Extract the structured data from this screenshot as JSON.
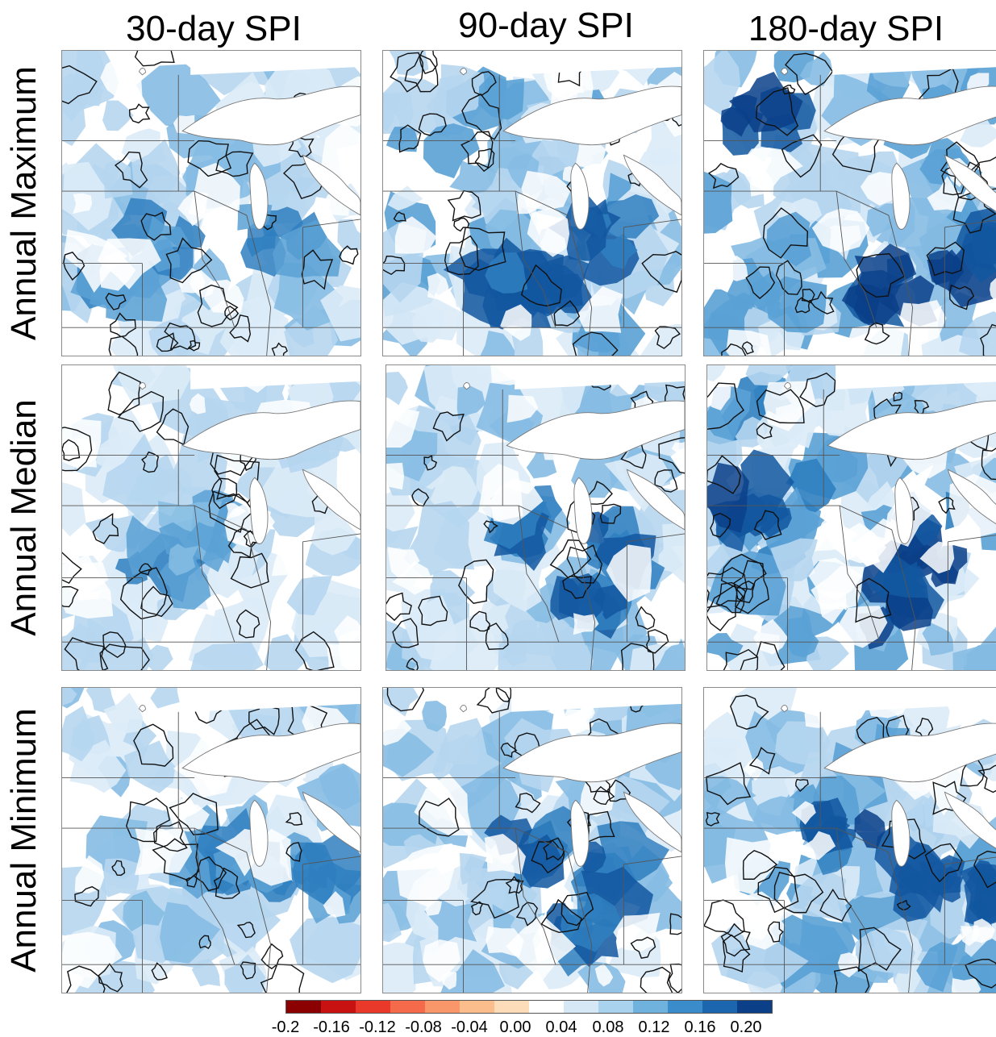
{
  "columns": [
    {
      "title": "30-day SPI"
    },
    {
      "title": "90-day SPI"
    },
    {
      "title": "180-day SPI"
    }
  ],
  "rows": [
    {
      "title": "Annual Maximum"
    },
    {
      "title": "Annual Median"
    },
    {
      "title": "Annual Minimum"
    }
  ],
  "panels": [
    {
      "row": 0,
      "col": 0,
      "intensity": 0.35,
      "blue_coverage": 0.55,
      "hotspots": [
        "southwest",
        "michigan-lower",
        "iowa"
      ]
    },
    {
      "row": 0,
      "col": 1,
      "intensity": 0.6,
      "blue_coverage": 0.7,
      "hotspots": [
        "illinois",
        "missouri-iowa",
        "michigan-lower"
      ]
    },
    {
      "row": 0,
      "col": 2,
      "intensity": 0.85,
      "blue_coverage": 0.8,
      "hotspots": [
        "minnesota-north",
        "illinois-indiana",
        "ohio"
      ]
    },
    {
      "row": 1,
      "col": 0,
      "intensity": 0.15,
      "blue_coverage": 0.55,
      "hotspots": [
        "wisconsin",
        "iowa"
      ]
    },
    {
      "row": 1,
      "col": 1,
      "intensity": 0.5,
      "blue_coverage": 0.7,
      "hotspots": [
        "wisconsin",
        "michigan-lower",
        "indiana"
      ]
    },
    {
      "row": 1,
      "col": 2,
      "intensity": 0.8,
      "blue_coverage": 0.8,
      "hotspots": [
        "minnesota",
        "michigan-lower",
        "illinois-indiana"
      ]
    },
    {
      "row": 2,
      "col": 0,
      "intensity": 0.35,
      "blue_coverage": 0.4,
      "hotspots": [
        "wisconsin",
        "michigan-lower",
        "ohio"
      ]
    },
    {
      "row": 2,
      "col": 1,
      "intensity": 0.5,
      "blue_coverage": 0.65,
      "hotspots": [
        "wisconsin",
        "michigan-lower",
        "indiana"
      ]
    },
    {
      "row": 2,
      "col": 2,
      "intensity": 0.7,
      "blue_coverage": 0.75,
      "hotspots": [
        "michigan-lower",
        "wisconsin",
        "ohio"
      ]
    }
  ],
  "colorbar": {
    "colors": [
      "#8b0000",
      "#c81212",
      "#e8392a",
      "#f46a4a",
      "#f9976a",
      "#fbbd8c",
      "#fdddb9",
      "#ffffff",
      "#d6e8f6",
      "#a9d2ee",
      "#6fb2de",
      "#3a8ccb",
      "#1c66b0",
      "#0b3f88"
    ],
    "tick_labels": [
      "-0.2",
      "-0.16",
      "-0.12",
      "-0.08",
      "-0.04",
      "0.00",
      "0.04",
      "0.08",
      "0.12",
      "0.16",
      "0.20"
    ]
  }
}
